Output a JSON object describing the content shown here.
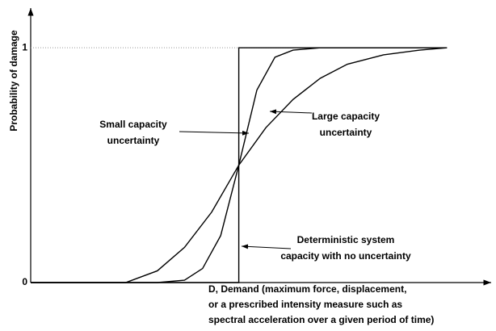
{
  "chart_data": {
    "type": "line",
    "ylabel": "Probability of damage",
    "xlabel": [
      "D, Demand (maximum force, displacement,",
      "or a prescribed intensity measure such as",
      "spectral acceleration over a given period of time)"
    ],
    "xlim": [
      0,
      100
    ],
    "ylim": [
      0,
      1.2
    ],
    "yticks": [
      0,
      1
    ],
    "series": [
      {
        "color": "#000000",
        "x": [
          0,
          46,
          46,
          92
        ],
        "values": [
          0,
          0,
          1,
          1
        ]
      },
      {
        "color": "#000000",
        "x": [
          0,
          28,
          34,
          38,
          42,
          46,
          50,
          54,
          58,
          64,
          70,
          92
        ],
        "values": [
          0,
          0,
          0.01,
          0.06,
          0.2,
          0.5,
          0.82,
          0.96,
          0.99,
          1,
          1,
          1
        ]
      },
      {
        "color": "#000000",
        "x": [
          0,
          21,
          28,
          34,
          40,
          46,
          52,
          58,
          64,
          70,
          78,
          86,
          92
        ],
        "values": [
          0,
          0,
          0.05,
          0.15,
          0.3,
          0.5,
          0.66,
          0.78,
          0.87,
          0.93,
          0.97,
          0.99,
          1
        ]
      }
    ],
    "annotations": [
      {
        "lines": [
          "Small capacity",
          "uncertainty"
        ]
      },
      {
        "lines": [
          "Large capacity",
          "uncertainty"
        ]
      },
      {
        "lines": [
          "Deterministic system",
          "capacity with no uncertainty"
        ]
      }
    ]
  }
}
